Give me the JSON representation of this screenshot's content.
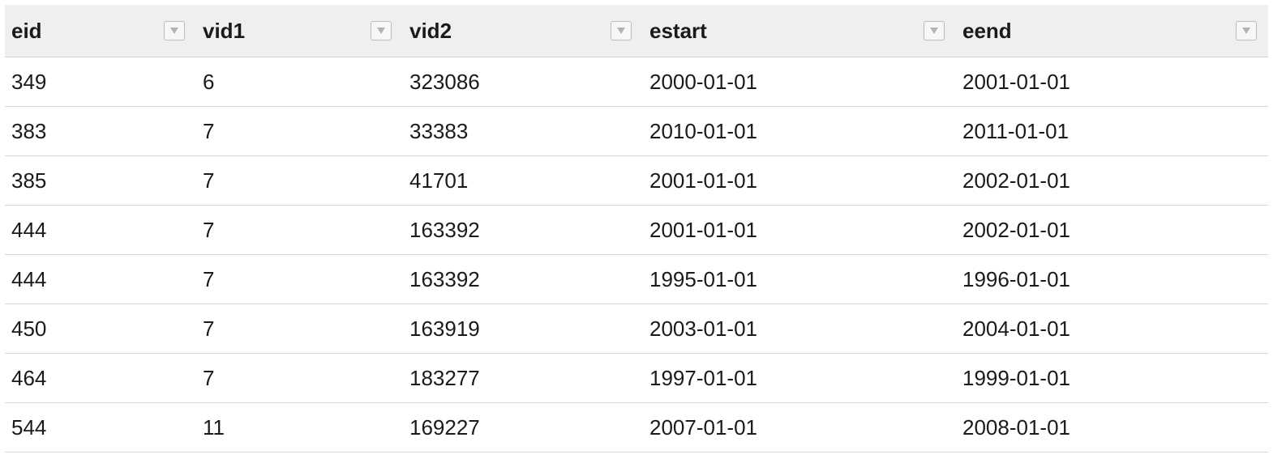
{
  "table": {
    "columns": [
      {
        "label": "eid"
      },
      {
        "label": "vid1"
      },
      {
        "label": "vid2"
      },
      {
        "label": "estart"
      },
      {
        "label": "eend"
      }
    ],
    "filter_icon": "triangle-down-icon",
    "rows": [
      [
        "349",
        "6",
        "323086",
        "2000-01-01",
        "2001-01-01"
      ],
      [
        "383",
        "7",
        "33383",
        "2010-01-01",
        "2011-01-01"
      ],
      [
        "385",
        "7",
        "41701",
        "2001-01-01",
        "2002-01-01"
      ],
      [
        "444",
        "7",
        "163392",
        "2001-01-01",
        "2002-01-01"
      ],
      [
        "444",
        "7",
        "163392",
        "1995-01-01",
        "1996-01-01"
      ],
      [
        "450",
        "7",
        "163919",
        "2003-01-01",
        "2004-01-01"
      ],
      [
        "464",
        "7",
        "183277",
        "1997-01-01",
        "1999-01-01"
      ],
      [
        "544",
        "11",
        "169227",
        "2007-01-01",
        "2008-01-01"
      ]
    ]
  },
  "colors": {
    "header_bg": "#efefef",
    "row_border": "#d7d7d7",
    "text": "#1a1a1a"
  }
}
